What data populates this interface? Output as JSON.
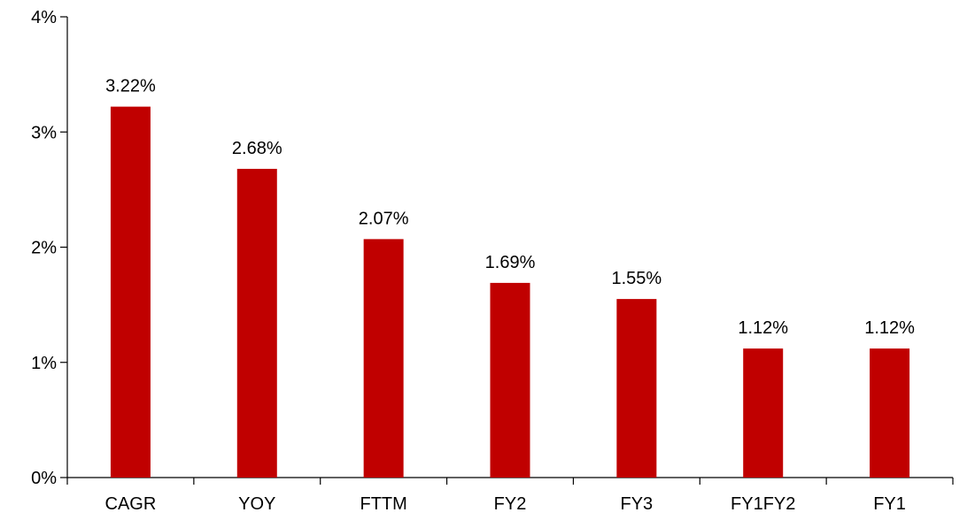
{
  "chart_data": {
    "type": "bar",
    "categories": [
      "CAGR",
      "YOY",
      "FTTM",
      "FY2",
      "FY3",
      "FY1FY2",
      "FY1"
    ],
    "values": [
      3.22,
      2.68,
      2.07,
      1.69,
      1.55,
      1.12,
      1.12
    ],
    "value_labels": [
      "3.22%",
      "2.68%",
      "2.07%",
      "1.69%",
      "1.55%",
      "1.12%",
      "1.12%"
    ],
    "yticks": [
      0,
      1,
      2,
      3,
      4
    ],
    "ytick_labels": [
      "0%",
      "1%",
      "2%",
      "3%",
      "4%"
    ],
    "ylim": [
      0,
      4
    ],
    "title": "",
    "xlabel": "",
    "ylabel": "",
    "grid": false,
    "legend": "none",
    "bar_color": "#C00000"
  }
}
